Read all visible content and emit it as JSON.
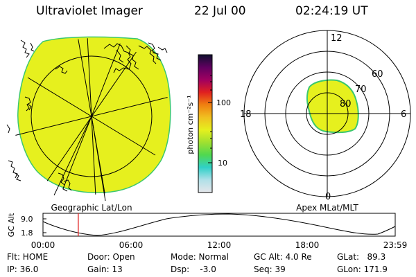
{
  "header": {
    "instrument": "Ultraviolet Imager",
    "date": "22 Jul 00",
    "time": "02:24:19 UT"
  },
  "colors": {
    "aurora_fill": "#e6f01e",
    "aurora_edge": "#3cc86e",
    "marker": "#e02020"
  },
  "colorbar": {
    "unit_label": "photon cm⁻²s⁻¹",
    "tick_100": "100",
    "tick_10": "10",
    "stops": [
      "#e6e6ea",
      "#b0e0e8",
      "#30d0c8",
      "#50d850",
      "#a0e030",
      "#e6f01e",
      "#f0c020",
      "#f08010",
      "#e02020",
      "#a00060",
      "#600060",
      "#101030"
    ]
  },
  "left_panel": {
    "caption": "Geographic Lat/Lon"
  },
  "right_panel": {
    "caption": "Apex MLat/MLT",
    "mlt_top": "12",
    "mlt_left": "18",
    "mlt_right": "6",
    "mlt_bottom": "0",
    "lat_60": "60",
    "lat_70": "70",
    "lat_80": "80"
  },
  "altitude_plot": {
    "ylabel": "GC Alt",
    "ytick_high": "9.0",
    "ytick_low": "1.8",
    "xticks": [
      "00:00",
      "06:00",
      "12:00",
      "18:00",
      "23:59"
    ],
    "marker_time_h": 2.405
  },
  "info": {
    "flt": "Flt: HOME",
    "ip": "IP: 36.0",
    "door": "Door: Open",
    "gain": "Gain: 13",
    "mode": "Mode: Normal",
    "dsp": "Dsp:    -3.0",
    "gcalt": "GC Alt: 4.0 Re",
    "seq": "Seq: 39",
    "glat": "GLat:   89.3",
    "glon": "GLon: 171.9"
  }
}
